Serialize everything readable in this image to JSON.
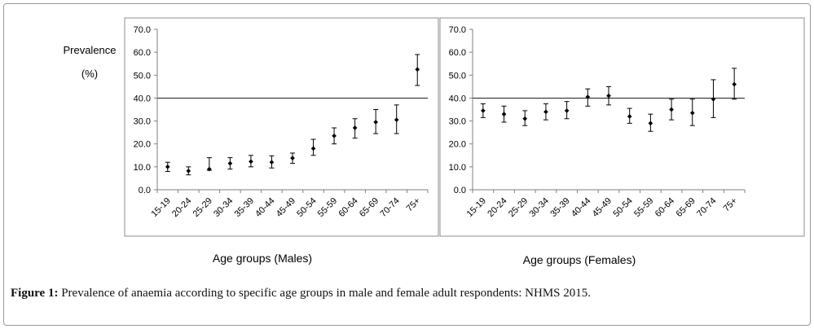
{
  "caption": {
    "label": "Figure 1:",
    "text": " Prevalence of anaemia according to specific age groups in male and female adult respondents: NHMS 2015."
  },
  "left_ylabel_line1": "Prevalence",
  "left_ylabel_line2": "(%)",
  "chart_data": [
    {
      "type": "scatter",
      "error_bars": true,
      "title": "",
      "xlabel": "Age groups (Males)",
      "ylabel": "Prevalence (%)",
      "ylim": [
        0,
        70
      ],
      "yticks": [
        "0.0",
        "10.0",
        "20.0",
        "30.0",
        "40.0",
        "50.0",
        "60.0",
        "70.0"
      ],
      "grid": "single horizontal line at 40.0",
      "categories": [
        "15-19",
        "20-24",
        "25-29",
        "30-34",
        "35-39",
        "40-44",
        "45-49",
        "50-54",
        "55-59",
        "60-64",
        "65-69",
        "70-74",
        "75+"
      ],
      "values": [
        10.0,
        8.2,
        9.0,
        11.5,
        12.3,
        12.0,
        13.8,
        18.0,
        23.5,
        27.0,
        29.5,
        30.5,
        52.5
      ],
      "lower": [
        8.0,
        6.5,
        8.5,
        9.0,
        10.0,
        9.5,
        11.5,
        15.0,
        20.0,
        22.5,
        24.5,
        24.5,
        45.5
      ],
      "upper": [
        12.0,
        10.0,
        14.0,
        14.0,
        15.0,
        14.8,
        16.0,
        22.0,
        27.0,
        31.0,
        35.0,
        37.0,
        59.0
      ],
      "line_color": "#000000"
    },
    {
      "type": "scatter",
      "error_bars": true,
      "title": "",
      "xlabel": "Age groups (Females)",
      "ylabel": "",
      "ylim": [
        0,
        70
      ],
      "yticks": [
        "0.0",
        "10.0",
        "20.0",
        "30.0",
        "40.0",
        "50.0",
        "60.0",
        "70.0"
      ],
      "grid": "single horizontal line at 40.0",
      "categories": [
        "15-19",
        "20-24",
        "25-29",
        "30-34",
        "35-39",
        "40-44",
        "45-49",
        "50-54",
        "55-59",
        "60-64",
        "65-69",
        "70-74",
        "75+"
      ],
      "values": [
        34.5,
        33.0,
        31.0,
        34.0,
        34.5,
        40.5,
        41.0,
        32.0,
        29.0,
        35.0,
        33.5,
        39.5,
        46.0
      ],
      "lower": [
        31.5,
        29.5,
        28.0,
        30.5,
        31.0,
        36.5,
        37.0,
        29.0,
        25.5,
        30.5,
        28.0,
        31.5,
        39.5
      ],
      "upper": [
        37.5,
        36.5,
        34.5,
        37.5,
        38.5,
        44.0,
        45.0,
        35.5,
        33.0,
        39.5,
        39.5,
        48.0,
        53.0
      ],
      "line_color": "#000000"
    }
  ]
}
